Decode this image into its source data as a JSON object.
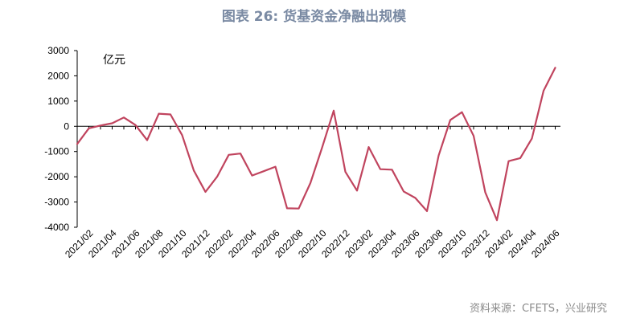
{
  "title": "图表 26: 货基资金净融出规模",
  "source": "资料来源：CFETS，兴业研究",
  "unit_label": "亿元",
  "colors": {
    "line": "#c0445e",
    "axis": "#000000",
    "title": "#7a8aa3"
  },
  "chart_data": {
    "type": "line",
    "title": "图表 26: 货基资金净融出规模",
    "ylabel": "亿元",
    "ylim": [
      -4000,
      3000
    ],
    "yticks": [
      3000,
      2000,
      1000,
      0,
      -1000,
      -2000,
      -3000,
      -4000
    ],
    "xtick_labels": [
      "2021/02",
      "2021/04",
      "2021/06",
      "2021/08",
      "2021/10",
      "2021/12",
      "2022/02",
      "2022/04",
      "2022/06",
      "2022/08",
      "2022/10",
      "2022/12",
      "2023/02",
      "2023/04",
      "2023/06",
      "2023/08",
      "2023/10",
      "2023/12",
      "2024/02",
      "2024/04",
      "2024/06"
    ],
    "grid": false,
    "x": [
      "2021/01",
      "2021/02",
      "2021/03",
      "2021/04",
      "2021/05",
      "2021/06",
      "2021/07",
      "2021/08",
      "2021/09",
      "2021/10",
      "2021/11",
      "2021/12",
      "2022/01",
      "2022/02",
      "2022/03",
      "2022/04",
      "2022/05",
      "2022/06",
      "2022/07",
      "2022/08",
      "2022/09",
      "2022/10",
      "2022/11",
      "2022/12",
      "2023/01",
      "2023/02",
      "2023/03",
      "2023/04",
      "2023/05",
      "2023/06",
      "2023/07",
      "2023/08",
      "2023/09",
      "2023/10",
      "2023/11",
      "2023/12",
      "2024/01",
      "2024/02",
      "2024/03",
      "2024/04",
      "2024/05",
      "2024/06"
    ],
    "series": [
      {
        "values": [
          -700,
          -80,
          30,
          120,
          350,
          50,
          -550,
          500,
          470,
          -350,
          -1750,
          -2600,
          -2000,
          -1130,
          -1080,
          -1950,
          -1780,
          -1600,
          -3250,
          -3260,
          -2250,
          -850,
          620,
          -1800,
          -2550,
          -820,
          -1700,
          -1720,
          -2580,
          -2840,
          -3360,
          -1160,
          250,
          560,
          -380,
          -2620,
          -3720,
          -1380,
          -1260,
          -480,
          1410,
          2320
        ]
      }
    ]
  }
}
